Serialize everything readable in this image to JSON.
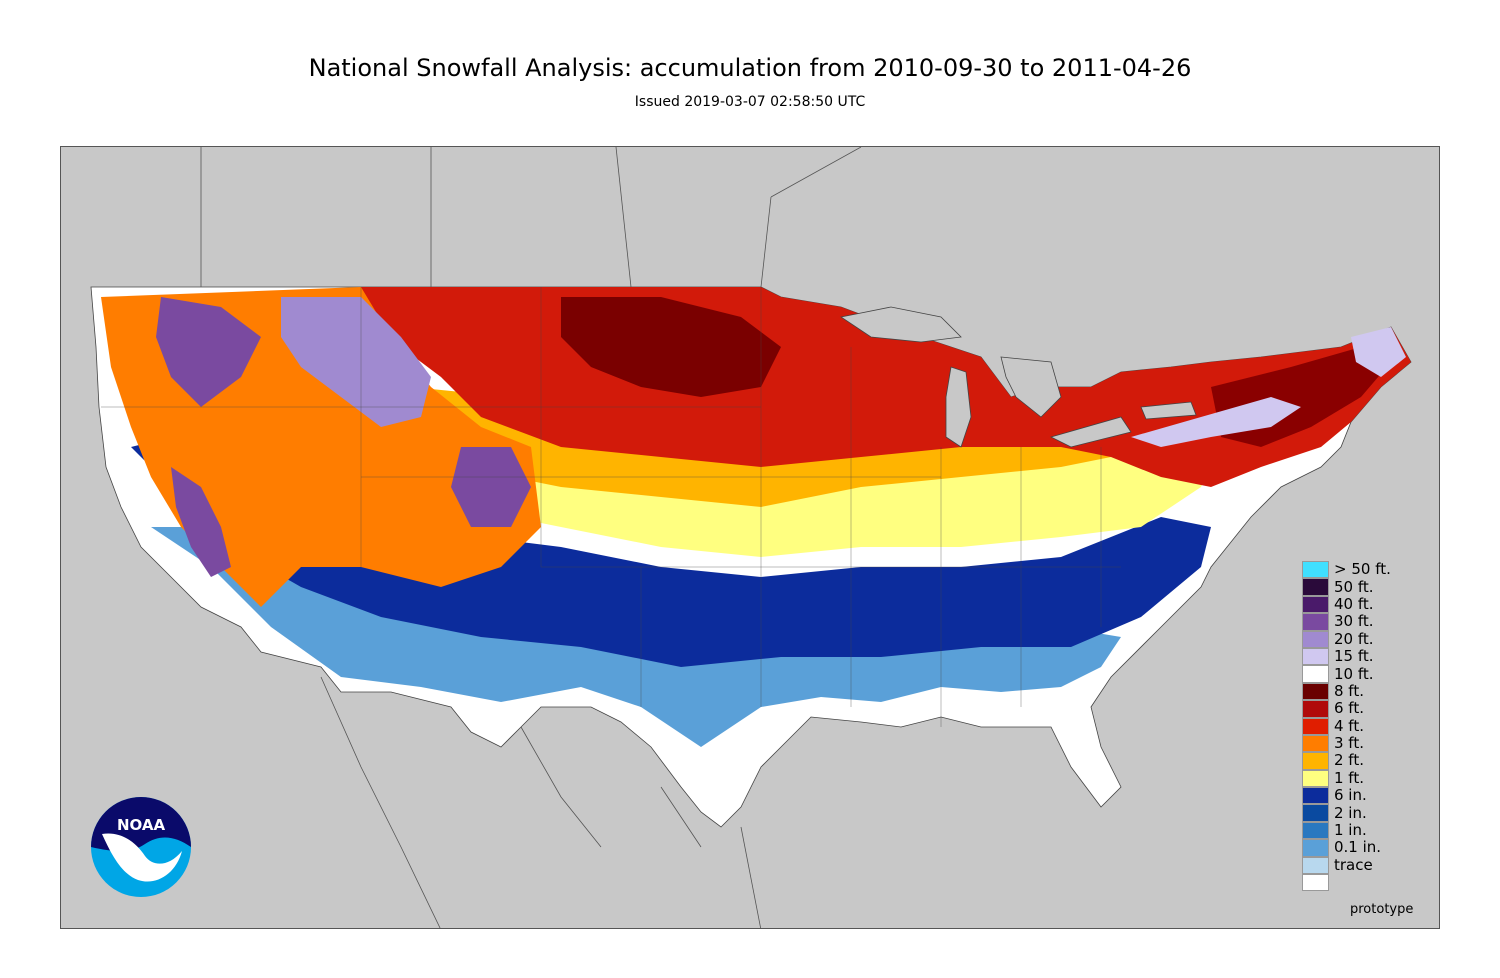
{
  "header": {
    "title": "National Snowfall Analysis: accumulation from 2010-09-30 to 2011-04-26",
    "subtitle": "Issued 2019-03-07 02:58:50 UTC"
  },
  "colors": {
    "background_land_outside": "#c8c8c8",
    "boundary_lines": "#555555"
  },
  "legend": {
    "items": [
      {
        "label": "> 50 ft.",
        "color": "#40e0ff"
      },
      {
        "label": "50 ft.",
        "color": "#2a0a3a"
      },
      {
        "label": "40 ft.",
        "color": "#4a1a6a"
      },
      {
        "label": "30 ft.",
        "color": "#7a4aa0"
      },
      {
        "label": "20 ft.",
        "color": "#a08ad0"
      },
      {
        "label": "15 ft.",
        "color": "#d0c8f0"
      },
      {
        "label": "10 ft.",
        "color": "#ffffff"
      },
      {
        "label": "8 ft.",
        "color": "#6a0000"
      },
      {
        "label": "6 ft.",
        "color": "#b00a0a"
      },
      {
        "label": "4 ft.",
        "color": "#e01e00"
      },
      {
        "label": "3 ft.",
        "color": "#ff7d00"
      },
      {
        "label": "2 ft.",
        "color": "#ffb400"
      },
      {
        "label": "1 ft.",
        "color": "#ffff80"
      },
      {
        "label": "6 in.",
        "color": "#0c2c9c"
      },
      {
        "label": "2 in.",
        "color": "#0a4aa0"
      },
      {
        "label": "1 in.",
        "color": "#2a78c0"
      },
      {
        "label": "0.1 in.",
        "color": "#5aa0d8"
      },
      {
        "label": "trace",
        "color": "#b8d8ee"
      }
    ],
    "last_swatch_color": "#ffffff"
  },
  "logo": {
    "text": "NOAA",
    "icon": "noaa-logo-icon"
  },
  "footer": {
    "note": "prototype"
  }
}
